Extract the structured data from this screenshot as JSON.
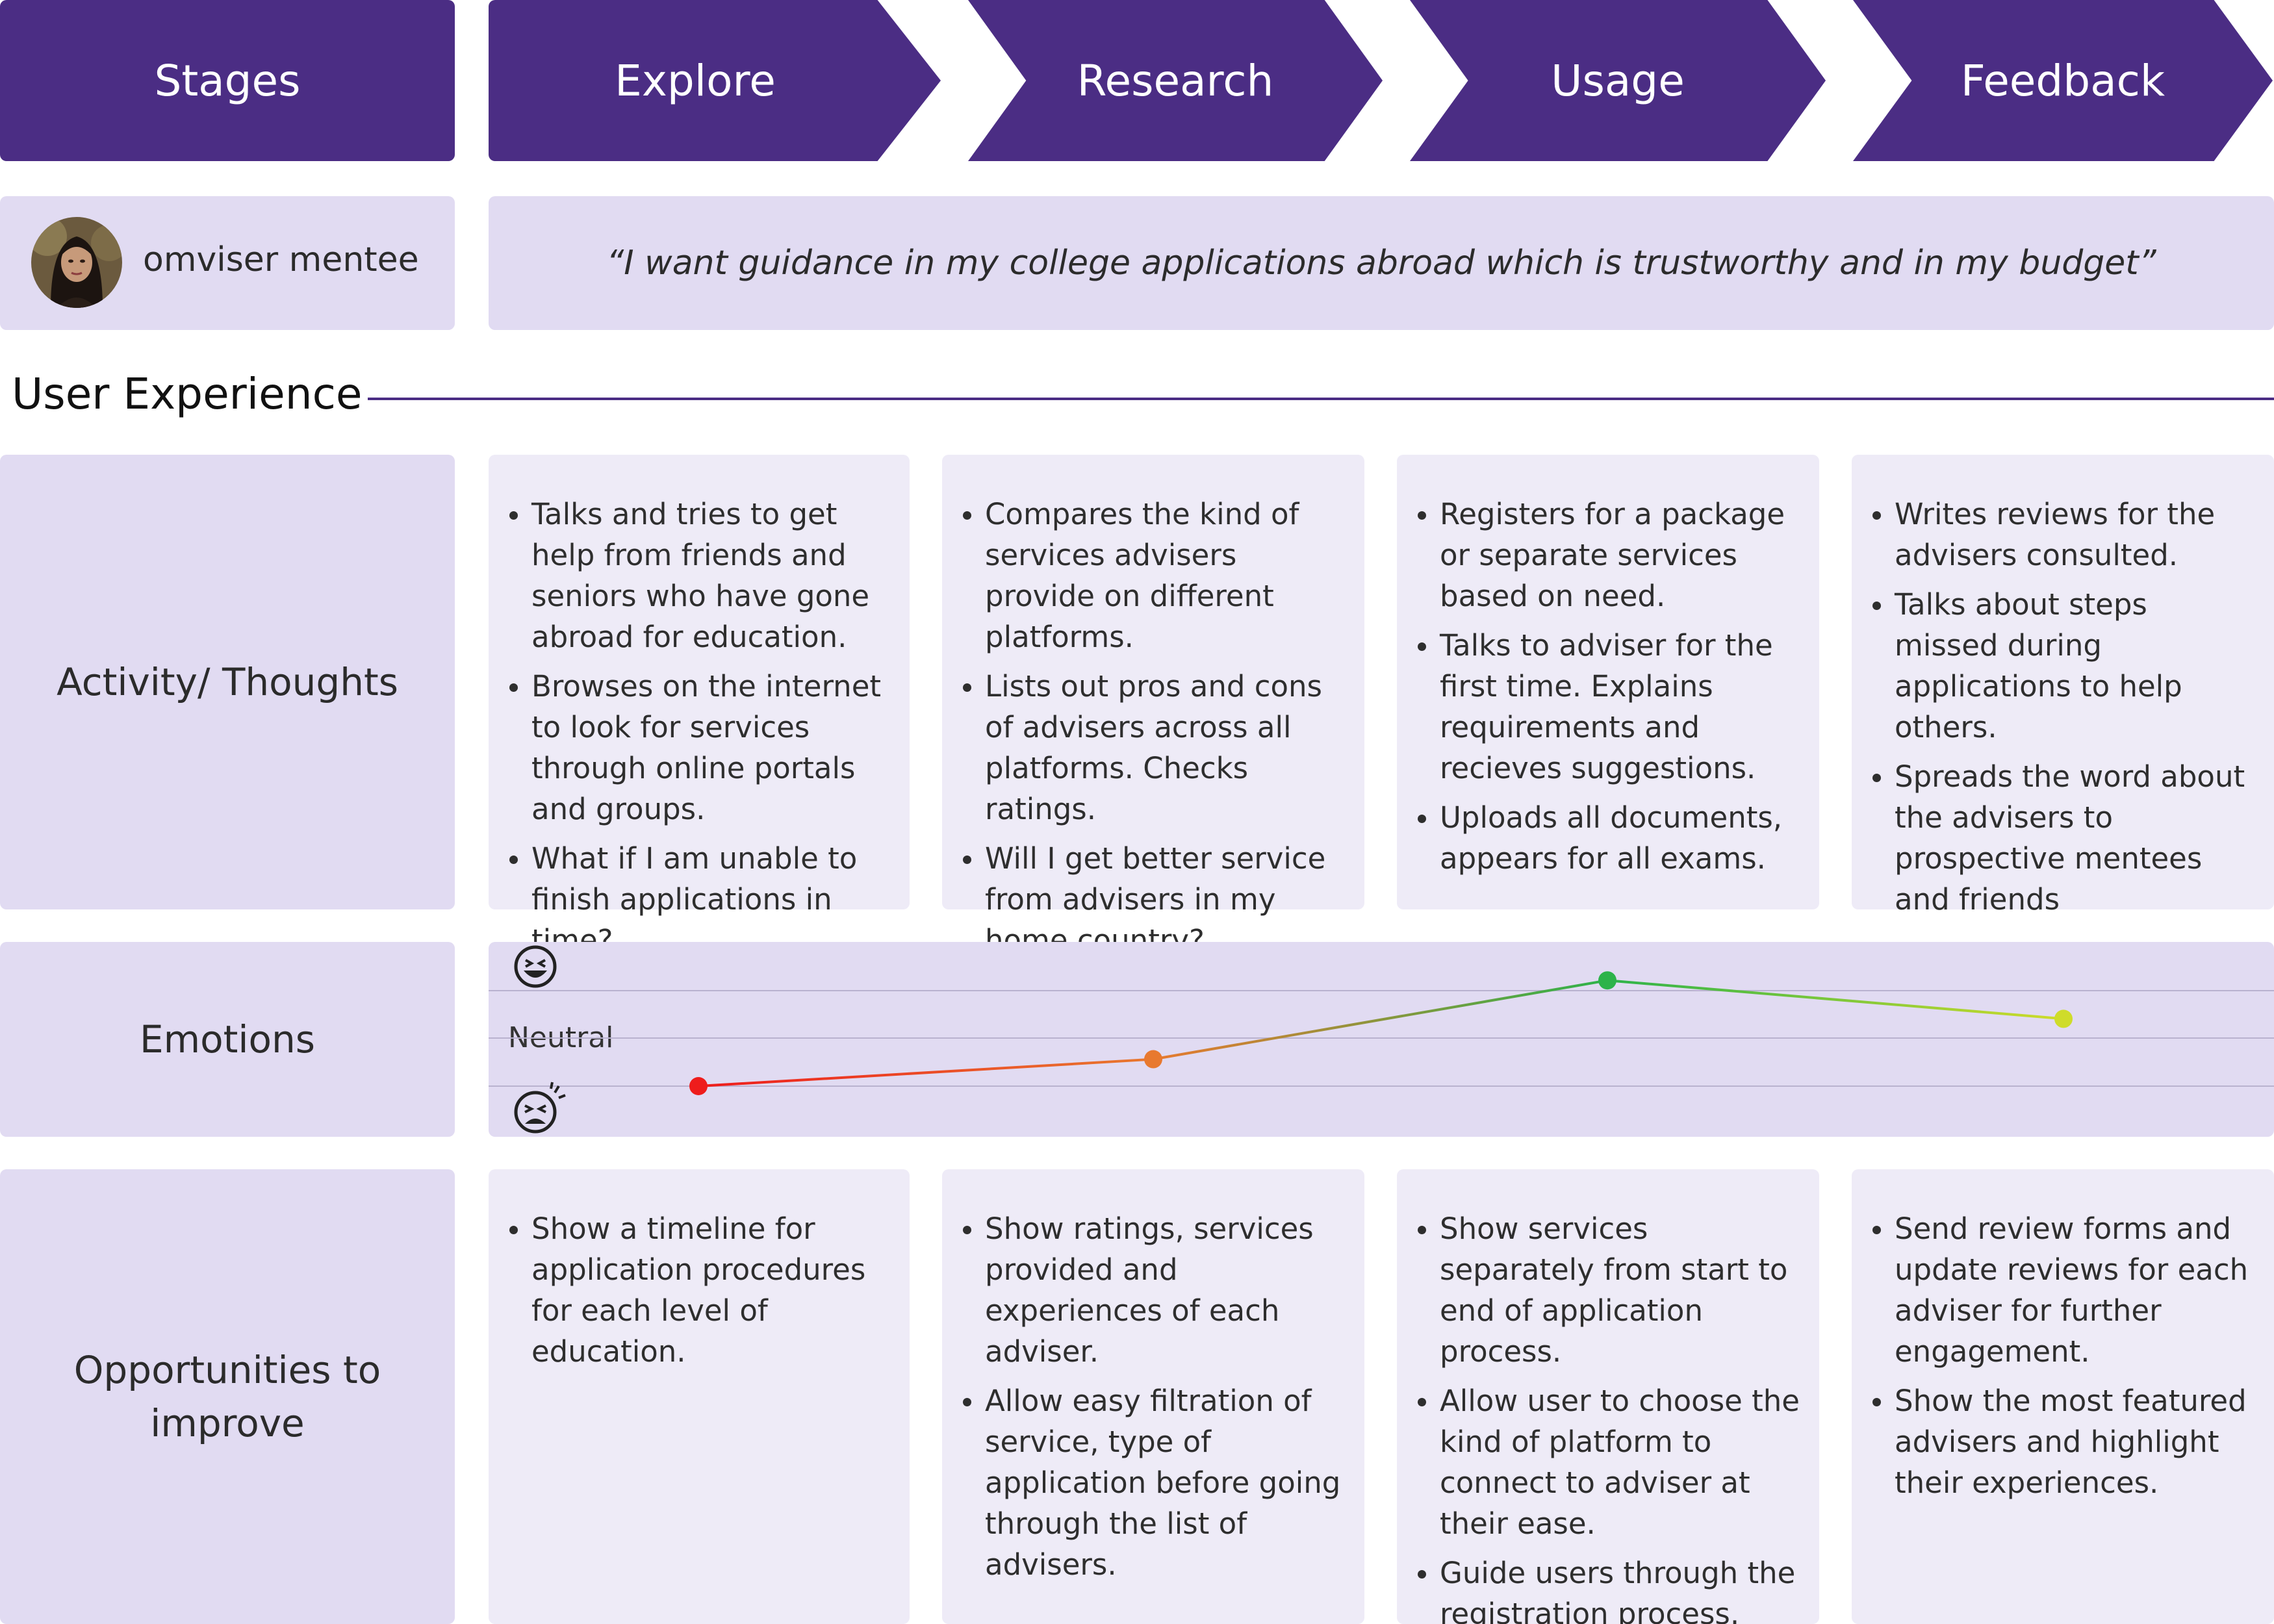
{
  "header": {
    "stages_label": "Stages",
    "stages": [
      "Explore",
      "Research",
      "Usage",
      "Feedback"
    ]
  },
  "persona": {
    "name": "omviser mentee",
    "quote": "“I want guidance in my college applications abroad which is trustworthy and in my budget”"
  },
  "section_title": "User Experience",
  "rows": {
    "activity_label": "Activity/ Thoughts",
    "emotions_label": "Emotions",
    "opportunities_label": "Opportunities to improve"
  },
  "activity": [
    [
      "Talks and tries to get help from friends and seniors who have gone abroad for education.",
      "Browses on the internet to look for services through online portals and groups.",
      "What if I am unable to finish applications in time?"
    ],
    [
      "Compares the kind of services advisers provide on different platforms.",
      "Lists out pros and cons of advisers across all platforms. Checks ratings.",
      "Will I get better service from advisers in my home country?"
    ],
    [
      "Registers for a package or separate services based on need.",
      "Talks to adviser for the first time. Explains requirements and recieves suggestions.",
      "Uploads all documents, appears for all exams."
    ],
    [
      "Writes reviews for the advisers consulted.",
      "Talks about steps missed during applications to help others.",
      "Spreads the word about the advisers to prospective mentees and friends"
    ]
  ],
  "opportunities": [
    [
      "Show a timeline for application procedures for each level of education."
    ],
    [
      "Show ratings, services provided and experiences of each adviser.",
      "Allow easy filtration of service, type of application before going through the list of advisers."
    ],
    [
      "Show services separately from start to end of application process.",
      "Allow user to choose the kind of platform to connect to adviser at their ease.",
      "Guide users through the registration process."
    ],
    [
      "Send review forms and update reviews for each adviser for further engagement.",
      "Show the most featured advisers and highlight their experiences."
    ]
  ],
  "emotion_chart": {
    "neutral_label": "Neutral",
    "scale": [
      -1,
      1
    ],
    "values": [
      -1.0,
      -0.44,
      1.2,
      0.4
    ],
    "colors": [
      "#ee1c1c",
      "#e8792f",
      "#2db34a",
      "#cfdc2a"
    ],
    "icons": [
      "grinning-face-icon",
      "tired-face-icon"
    ]
  }
}
